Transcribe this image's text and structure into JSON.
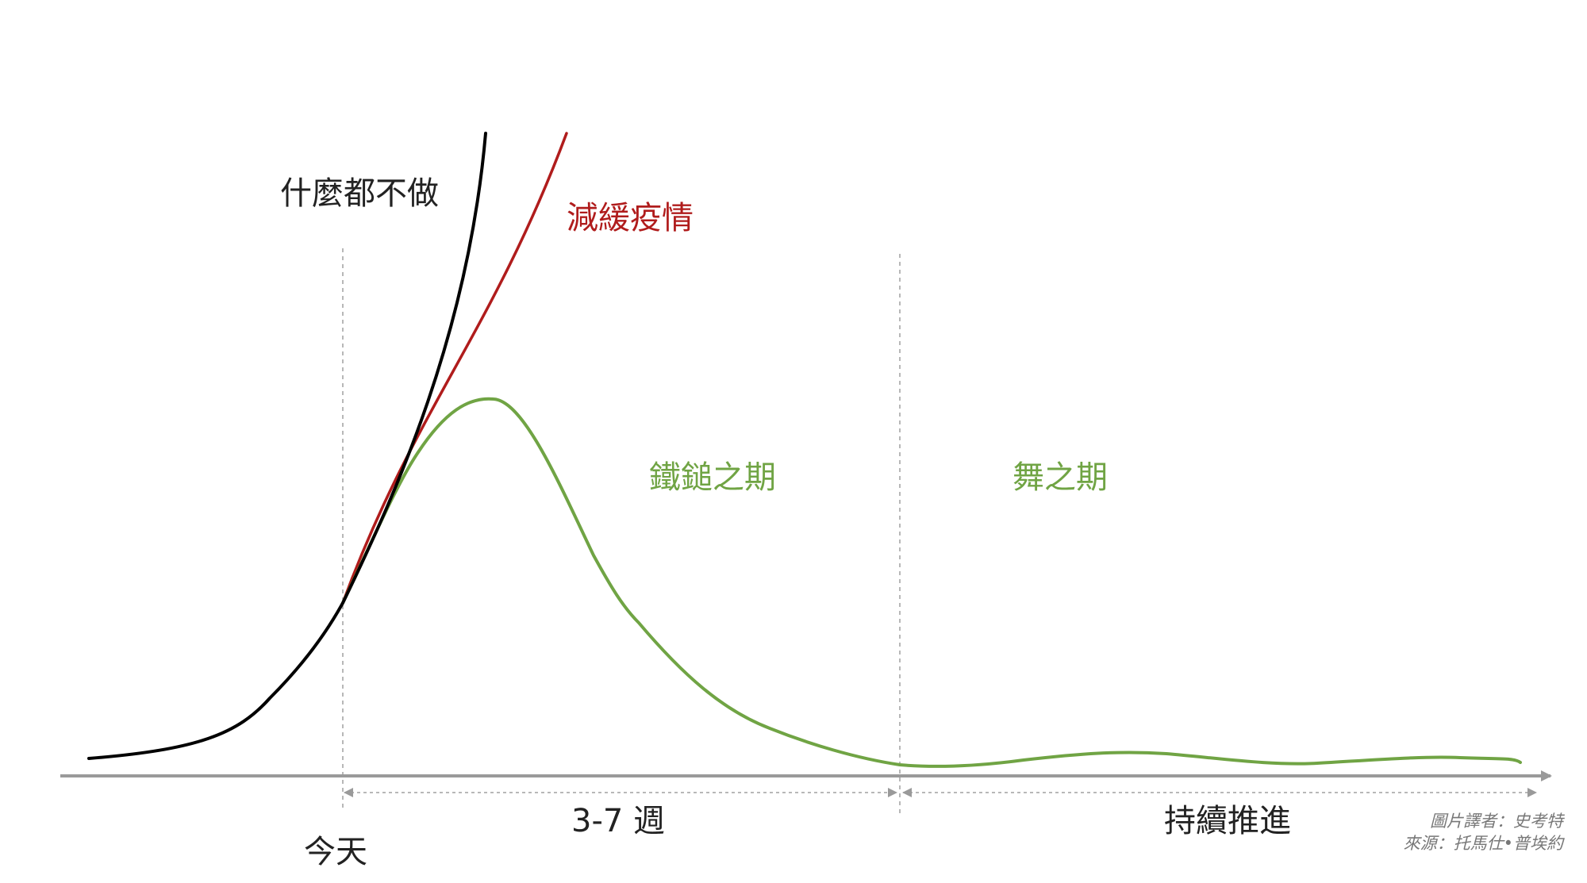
{
  "curves": {
    "do_nothing": {
      "label": "什麼都不做",
      "color": "#000000"
    },
    "mitigation": {
      "label": "減緩疫情",
      "color": "#b01c1c"
    },
    "suppression": {
      "color": "#70a444"
    }
  },
  "phases": {
    "hammer": {
      "label": "鐵鎚之期",
      "color": "#70a444"
    },
    "dance": {
      "label": "舞之期",
      "color": "#70a444"
    }
  },
  "timeline": {
    "today": "今天",
    "hammer_duration": "3-7 週",
    "dance_duration": "持續推進"
  },
  "credits": {
    "translator": "圖片譯者：史考特",
    "source": "來源：托馬仕•普埃約"
  },
  "colors": {
    "axis": "#9a9a9a",
    "guide": "#a0a0a0",
    "text": "#222222",
    "credit": "#777777"
  }
}
